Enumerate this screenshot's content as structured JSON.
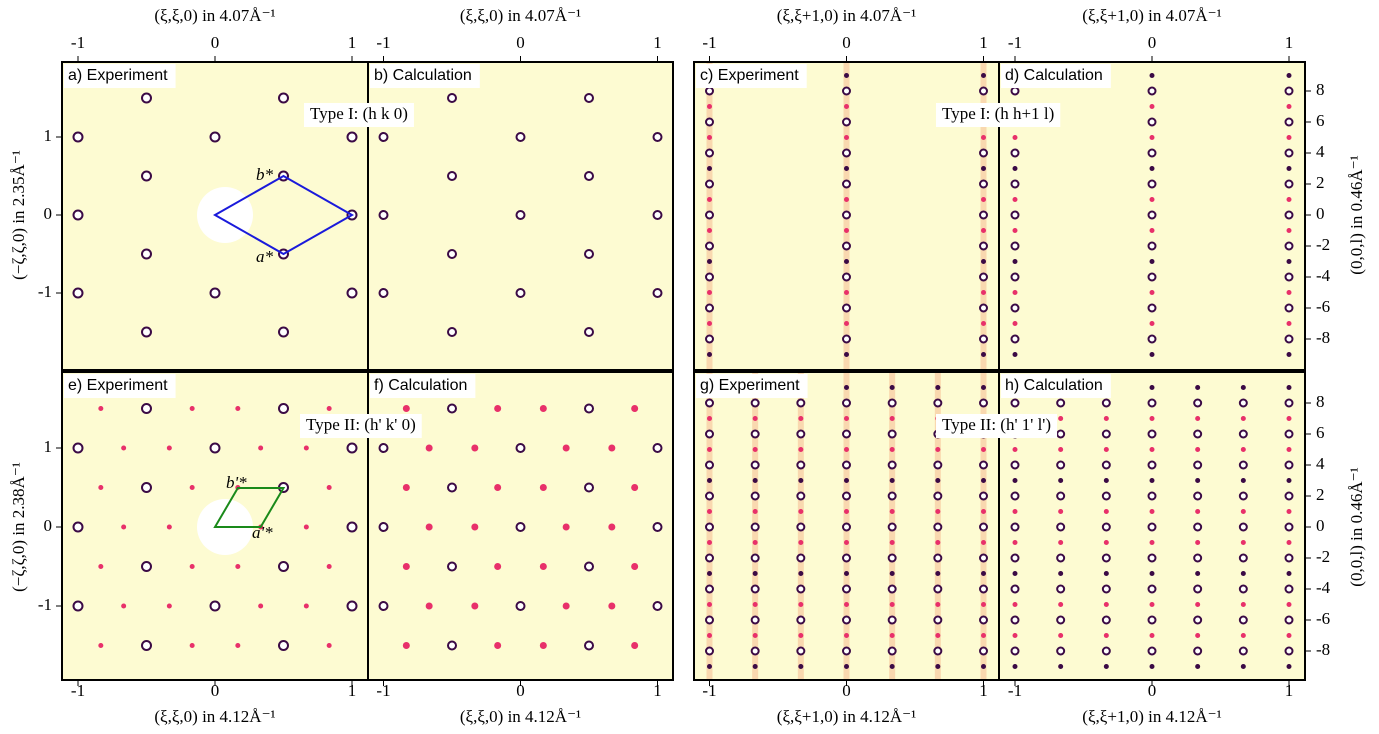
{
  "axes": {
    "top_titles": [
      "(ξ,ξ,0) in 4.07Å⁻¹",
      "(ξ,ξ,0) in 4.07Å⁻¹",
      "(ξ,ξ+1,0) in 4.07Å⁻¹",
      "(ξ,ξ+1,0) in 4.07Å⁻¹"
    ],
    "bottom_titles": [
      "(ξ,ξ,0) in 4.12Å⁻¹",
      "(ξ,ξ,0) in 4.12Å⁻¹",
      "(ξ,ξ+1,0) in 4.12Å⁻¹",
      "(ξ,ξ+1,0) in 4.12Å⁻¹"
    ],
    "left_titles": [
      "(−ζ,ζ,0) in 2.35Å⁻¹",
      "(−ζ,ζ,0) in 2.38Å⁻¹"
    ],
    "right_titles": [
      "(0,0,l) in 0.46Å⁻¹",
      "(0,0,l) in 0.46Å⁻¹"
    ],
    "x_ticks": [
      "-1",
      "0",
      "1"
    ],
    "y_ticks": [
      "1",
      "0",
      "-1"
    ],
    "l_ticks": [
      "8",
      "6",
      "4",
      "2",
      "0",
      "-2",
      "-4",
      "-6",
      "-8"
    ]
  },
  "panels": [
    {
      "label": "a) Experiment"
    },
    {
      "label": "b) Calculation"
    },
    {
      "label": "c) Experiment"
    },
    {
      "label": "d) Calculation"
    },
    {
      "label": "e) Experiment"
    },
    {
      "label": "f) Calculation"
    },
    {
      "label": "g) Experiment"
    },
    {
      "label": "h) Calculation"
    }
  ],
  "annotations": {
    "type_labels": [
      "Type I: (h k 0)",
      "Type I: (h h+1 l)",
      "Type II: (h' k' 0)",
      "Type II: (h' 1' l')"
    ],
    "vectors": [
      "a*",
      "b*",
      "a'*",
      "b'*"
    ]
  }
}
